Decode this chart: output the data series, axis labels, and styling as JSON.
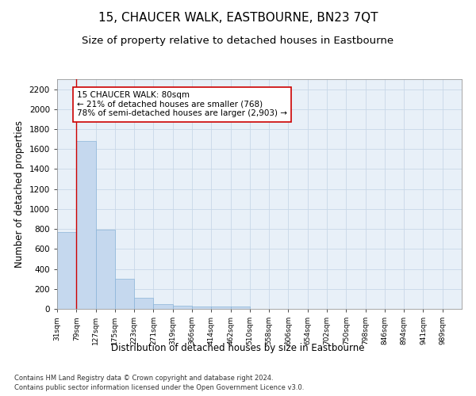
{
  "title": "15, CHAUCER WALK, EASTBOURNE, BN23 7QT",
  "subtitle": "Size of property relative to detached houses in Eastbourne",
  "xlabel": "Distribution of detached houses by size in Eastbourne",
  "ylabel": "Number of detached properties",
  "bar_values": [
    770,
    1680,
    790,
    300,
    110,
    45,
    32,
    25,
    22,
    20,
    0,
    0,
    0,
    0,
    0,
    0,
    0,
    0,
    0,
    0
  ],
  "categories": [
    "31sqm",
    "79sqm",
    "127sqm",
    "175sqm",
    "223sqm",
    "271sqm",
    "319sqm",
    "366sqm",
    "414sqm",
    "462sqm",
    "510sqm",
    "558sqm",
    "606sqm",
    "654sqm",
    "702sqm",
    "750sqm",
    "798sqm",
    "846sqm",
    "894sqm",
    "941sqm",
    "989sqm"
  ],
  "bar_color": "#c5d8ee",
  "bar_edge_color": "#8ab4d8",
  "vline_color": "#cc0000",
  "annotation_box_text": "15 CHAUCER WALK: 80sqm\n← 21% of detached houses are smaller (768)\n78% of semi-detached houses are larger (2,903) →",
  "annotation_box_color": "#cc0000",
  "ylim": [
    0,
    2300
  ],
  "yticks": [
    0,
    200,
    400,
    600,
    800,
    1000,
    1200,
    1400,
    1600,
    1800,
    2000,
    2200
  ],
  "grid_color": "#c8d8e8",
  "background_color": "#e8f0f8",
  "footer_line1": "Contains HM Land Registry data © Crown copyright and database right 2024.",
  "footer_line2": "Contains public sector information licensed under the Open Government Licence v3.0.",
  "title_fontsize": 11,
  "subtitle_fontsize": 9.5,
  "xlabel_fontsize": 8.5,
  "ylabel_fontsize": 8.5
}
